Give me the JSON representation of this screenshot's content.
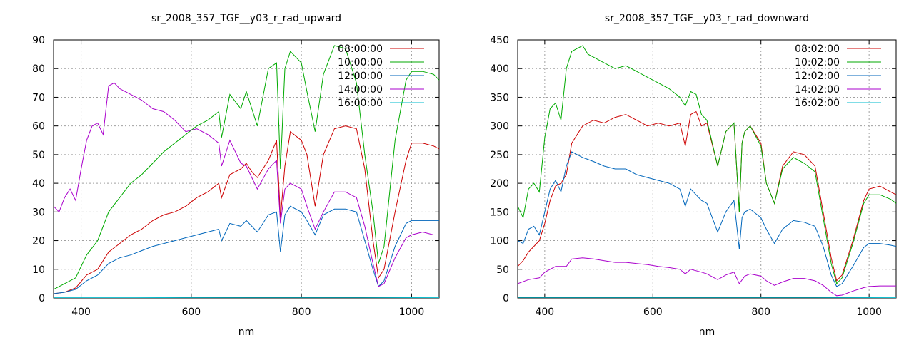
{
  "chart_data": [
    {
      "type": "line",
      "title": "sr_2008_357_TGF__y03_r_rad_upward",
      "xlabel": "nm",
      "ylabel": "",
      "xlim": [
        350,
        1050
      ],
      "ylim": [
        0,
        90
      ],
      "xticks": [
        400,
        600,
        800,
        1000
      ],
      "yticks": [
        0,
        10,
        20,
        30,
        40,
        50,
        60,
        70,
        80,
        90
      ],
      "grid": true,
      "legend_position": "top-right",
      "series": [
        {
          "name": "08:00:00",
          "color": "#cc0000",
          "x": [
            350,
            370,
            390,
            410,
            430,
            450,
            470,
            490,
            510,
            530,
            550,
            570,
            590,
            610,
            630,
            650,
            655,
            670,
            690,
            700,
            710,
            720,
            740,
            755,
            762,
            770,
            780,
            800,
            810,
            825,
            840,
            860,
            880,
            900,
            915,
            930,
            940,
            950,
            970,
            990,
            1000,
            1020,
            1040,
            1050
          ],
          "y": [
            1.5,
            2,
            3.5,
            8,
            10,
            16,
            19,
            22,
            24,
            27,
            29,
            30,
            32,
            35,
            37,
            40,
            35,
            43,
            45,
            47,
            44,
            42,
            48,
            55,
            28,
            46,
            58,
            55,
            50,
            32,
            50,
            59,
            60,
            59,
            45,
            20,
            7,
            10,
            30,
            48,
            54,
            54,
            53,
            52
          ]
        },
        {
          "name": "10:00:00",
          "color": "#00aa00",
          "x": [
            350,
            370,
            390,
            410,
            430,
            450,
            470,
            490,
            510,
            530,
            550,
            570,
            590,
            610,
            630,
            650,
            655,
            670,
            690,
            700,
            710,
            720,
            740,
            755,
            762,
            770,
            780,
            800,
            810,
            825,
            840,
            860,
            880,
            900,
            915,
            930,
            940,
            950,
            970,
            990,
            1000,
            1020,
            1040,
            1050
          ],
          "y": [
            3,
            5,
            7,
            15,
            20,
            30,
            35,
            40,
            43,
            47,
            51,
            54,
            57,
            60,
            62,
            65,
            56,
            71,
            66,
            72,
            66,
            60,
            80,
            82,
            45,
            80,
            86,
            82,
            72,
            58,
            78,
            88,
            87,
            75,
            50,
            30,
            12,
            18,
            55,
            76,
            79,
            79,
            78,
            76
          ]
        },
        {
          "name": "12:00:00",
          "color": "#0066bb",
          "x": [
            350,
            370,
            390,
            410,
            430,
            450,
            470,
            490,
            510,
            530,
            550,
            570,
            590,
            610,
            630,
            650,
            655,
            670,
            690,
            700,
            710,
            720,
            740,
            755,
            762,
            770,
            780,
            800,
            810,
            825,
            840,
            860,
            880,
            900,
            915,
            930,
            940,
            950,
            970,
            990,
            1000,
            1020,
            1040,
            1050
          ],
          "y": [
            1.5,
            2,
            3,
            6,
            8,
            12,
            14,
            15,
            16.5,
            18,
            19,
            20,
            21,
            22,
            23,
            24,
            20,
            26,
            25,
            27,
            25,
            23,
            29,
            30,
            16,
            29,
            32,
            30,
            27,
            22,
            29,
            31,
            31,
            30,
            20,
            10,
            4,
            6,
            18,
            26,
            27,
            27,
            27,
            27
          ]
        },
        {
          "name": "14:00:00",
          "color": "#aa00cc",
          "x": [
            350,
            360,
            370,
            380,
            390,
            400,
            410,
            420,
            430,
            440,
            450,
            460,
            470,
            490,
            510,
            530,
            550,
            570,
            590,
            610,
            630,
            650,
            655,
            670,
            690,
            700,
            710,
            720,
            740,
            755,
            762,
            770,
            780,
            800,
            810,
            825,
            840,
            860,
            880,
            900,
            915,
            930,
            940,
            950,
            970,
            990,
            1000,
            1020,
            1040,
            1050
          ],
          "y": [
            32,
            30,
            35,
            38,
            34,
            45,
            55,
            60,
            61,
            57,
            74,
            75,
            73,
            71,
            69,
            66,
            65,
            62,
            58,
            59,
            57,
            54,
            46,
            55,
            47,
            46,
            42,
            38,
            45,
            48,
            26,
            38,
            40,
            38,
            32,
            24,
            30,
            37,
            37,
            35,
            25,
            12,
            4,
            5,
            14,
            21,
            22,
            23,
            22,
            22
          ]
        },
        {
          "name": "16:00:00",
          "color": "#00bbcc",
          "x": [
            350,
            500,
            700,
            900,
            1050
          ],
          "y": [
            0.1,
            0.1,
            0.2,
            0.2,
            0.1
          ]
        }
      ]
    },
    {
      "type": "line",
      "title": "sr_2008_357_TGF__y03_r_rad_downward",
      "xlabel": "nm",
      "ylabel": "",
      "xlim": [
        350,
        1050
      ],
      "ylim": [
        0,
        450
      ],
      "xticks": [
        400,
        600,
        800,
        1000
      ],
      "yticks": [
        0,
        50,
        100,
        150,
        200,
        250,
        300,
        350,
        400,
        450
      ],
      "grid": true,
      "legend_position": "top-right",
      "series": [
        {
          "name": "08:02:00",
          "color": "#cc0000",
          "x": [
            350,
            360,
            370,
            380,
            390,
            400,
            410,
            420,
            430,
            440,
            450,
            470,
            490,
            510,
            530,
            550,
            570,
            590,
            610,
            630,
            650,
            660,
            670,
            680,
            690,
            700,
            720,
            735,
            750,
            760,
            765,
            770,
            780,
            800,
            810,
            825,
            840,
            860,
            880,
            900,
            915,
            930,
            940,
            950,
            970,
            990,
            1000,
            1020,
            1040,
            1050
          ],
          "y": [
            55,
            65,
            80,
            90,
            100,
            130,
            170,
            195,
            200,
            215,
            270,
            300,
            310,
            305,
            315,
            320,
            310,
            300,
            305,
            300,
            305,
            265,
            320,
            325,
            300,
            305,
            230,
            290,
            305,
            150,
            270,
            290,
            300,
            270,
            200,
            165,
            230,
            255,
            250,
            230,
            150,
            70,
            30,
            40,
            100,
            170,
            190,
            195,
            185,
            180
          ]
        },
        {
          "name": "10:02:00",
          "color": "#00aa00",
          "x": [
            350,
            360,
            370,
            380,
            390,
            400,
            410,
            420,
            430,
            440,
            450,
            460,
            470,
            480,
            490,
            510,
            530,
            550,
            570,
            590,
            610,
            630,
            650,
            660,
            670,
            680,
            690,
            700,
            720,
            735,
            750,
            760,
            765,
            770,
            780,
            800,
            810,
            825,
            840,
            860,
            880,
            900,
            915,
            930,
            940,
            950,
            970,
            990,
            1000,
            1020,
            1040,
            1050
          ],
          "y": [
            160,
            140,
            190,
            200,
            185,
            280,
            330,
            340,
            310,
            400,
            430,
            435,
            440,
            425,
            420,
            410,
            400,
            405,
            395,
            385,
            375,
            365,
            350,
            335,
            360,
            355,
            320,
            310,
            230,
            290,
            305,
            150,
            270,
            290,
            300,
            265,
            200,
            165,
            225,
            245,
            235,
            220,
            140,
            60,
            25,
            35,
            95,
            165,
            180,
            180,
            172,
            165
          ]
        },
        {
          "name": "12:02:00",
          "color": "#0066bb",
          "x": [
            350,
            360,
            370,
            380,
            390,
            400,
            410,
            420,
            430,
            440,
            450,
            460,
            470,
            490,
            510,
            530,
            550,
            570,
            590,
            610,
            630,
            650,
            660,
            670,
            690,
            700,
            720,
            735,
            750,
            760,
            765,
            770,
            780,
            800,
            810,
            825,
            840,
            860,
            880,
            900,
            915,
            930,
            940,
            950,
            970,
            990,
            1000,
            1020,
            1040,
            1050
          ],
          "y": [
            100,
            95,
            120,
            125,
            110,
            150,
            190,
            205,
            185,
            230,
            255,
            250,
            245,
            238,
            230,
            225,
            225,
            215,
            210,
            205,
            200,
            190,
            160,
            190,
            170,
            165,
            115,
            150,
            170,
            85,
            140,
            150,
            155,
            140,
            120,
            95,
            120,
            135,
            132,
            125,
            90,
            40,
            20,
            25,
            55,
            88,
            95,
            95,
            92,
            90
          ]
        },
        {
          "name": "14:02:00",
          "color": "#aa00cc",
          "x": [
            350,
            370,
            390,
            400,
            420,
            440,
            450,
            470,
            490,
            510,
            530,
            550,
            570,
            590,
            610,
            630,
            650,
            660,
            670,
            690,
            700,
            720,
            735,
            750,
            760,
            770,
            780,
            800,
            810,
            825,
            840,
            860,
            880,
            900,
            915,
            930,
            940,
            950,
            970,
            990,
            1000,
            1020,
            1040,
            1050
          ],
          "y": [
            25,
            32,
            35,
            45,
            55,
            55,
            68,
            70,
            68,
            65,
            62,
            62,
            60,
            58,
            55,
            53,
            50,
            42,
            50,
            45,
            42,
            32,
            40,
            45,
            25,
            38,
            42,
            38,
            30,
            22,
            28,
            34,
            34,
            30,
            22,
            10,
            4,
            5,
            12,
            18,
            20,
            21,
            21,
            21
          ]
        },
        {
          "name": "16:02:00",
          "color": "#00bbcc",
          "x": [
            350,
            500,
            700,
            900,
            1050
          ],
          "y": [
            1,
            1,
            1,
            1,
            0.5
          ]
        }
      ]
    }
  ]
}
